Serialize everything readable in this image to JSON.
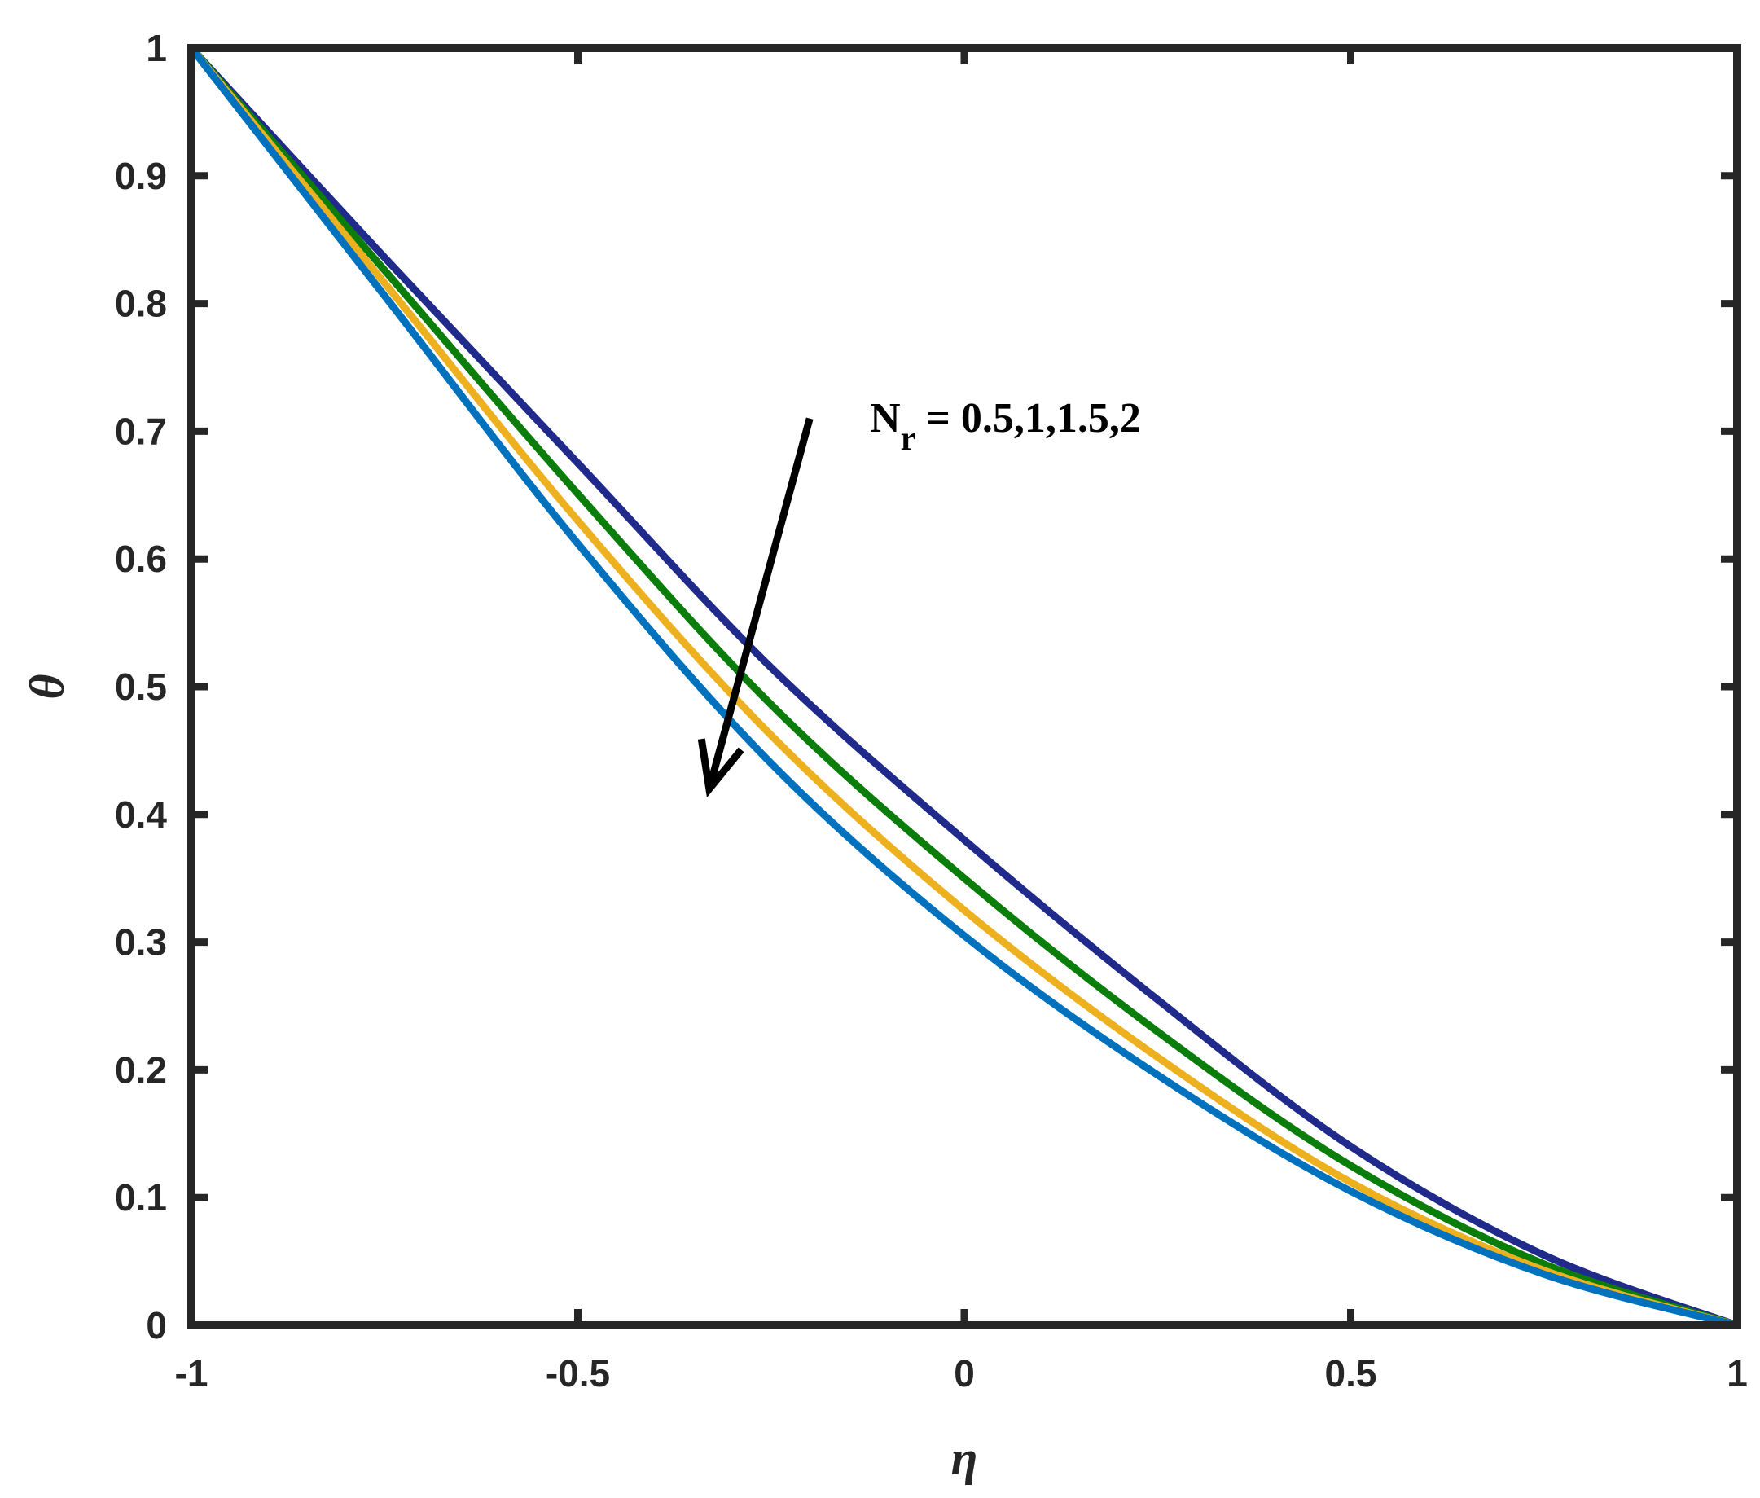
{
  "chart_data": {
    "type": "line",
    "xlabel": "η",
    "ylabel": "θ",
    "xlim": [
      -1,
      1
    ],
    "ylim": [
      0,
      1
    ],
    "xticks": [
      "-1",
      "-0.5",
      "0",
      "0.5",
      "1"
    ],
    "yticks": [
      "0",
      "0.1",
      "0.2",
      "0.3",
      "0.4",
      "0.5",
      "0.6",
      "0.7",
      "0.8",
      "0.9",
      "1"
    ],
    "grid": false,
    "x": [
      -1,
      -0.75,
      -0.5,
      -0.25,
      0,
      0.25,
      0.5,
      0.75,
      1
    ],
    "series": [
      {
        "color": "#1f2a8a",
        "values": [
          1.0,
          0.836,
          0.675,
          0.515,
          0.38,
          0.255,
          0.14,
          0.055,
          0.0
        ]
      },
      {
        "color": "#0b7d0b",
        "values": [
          1.0,
          0.826,
          0.651,
          0.486,
          0.35,
          0.23,
          0.125,
          0.048,
          0.0
        ]
      },
      {
        "color": "#edb120",
        "values": [
          1.0,
          0.816,
          0.63,
          0.462,
          0.325,
          0.21,
          0.112,
          0.043,
          0.0
        ]
      },
      {
        "color": "#0072bd",
        "values": [
          1.0,
          0.806,
          0.612,
          0.44,
          0.305,
          0.196,
          0.105,
          0.04,
          0.0
        ]
      }
    ],
    "annotation": {
      "text_main": "N",
      "text_sub": "r",
      "text_values": " = 0.5,1,1.5,2",
      "arrow": {
        "from": [
          -0.2,
          0.71
        ],
        "to": [
          -0.33,
          0.42
        ]
      }
    }
  }
}
